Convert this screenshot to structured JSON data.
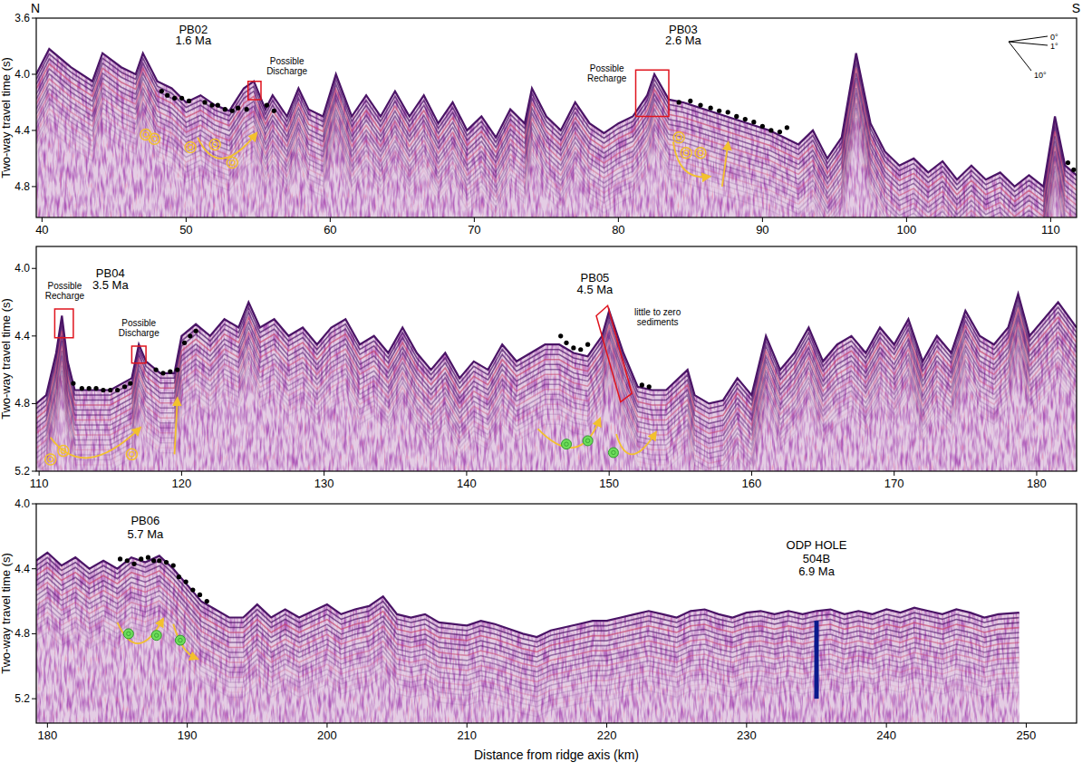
{
  "chart_data": [
    {
      "type": "line",
      "xlim": [
        39.6,
        111.8
      ],
      "xticks": [
        40,
        50,
        60,
        70,
        80,
        90,
        100,
        110
      ],
      "ylim": [
        3.6,
        5.02
      ],
      "yticks": [
        3.6,
        {
          "value": 4,
          "label": "4.0"
        },
        4.4,
        4.8
      ],
      "ylabel": "Two-way travel time (s)",
      "corner_labels": [
        "N",
        "S"
      ],
      "compass_labels": [
        "0°",
        "1°",
        "10°"
      ],
      "series": [
        {
          "type": "line",
          "color": "#4a1466",
          "x": [
            39.6,
            40.5,
            42,
            43.5,
            44.2,
            45.5,
            46.5,
            47,
            48,
            49,
            50,
            51,
            52,
            53,
            54,
            54.7,
            55.5,
            56,
            57,
            57.8,
            58.5,
            59.5,
            60.4,
            61.5,
            62.5,
            63.5,
            64.5,
            65.5,
            66.5,
            67.5,
            68.5,
            69.5,
            70.5,
            71.5,
            72.5,
            73.5,
            74,
            75,
            76,
            77,
            78,
            79,
            80,
            81,
            82,
            82.5,
            83.5,
            84.5,
            86,
            87.5,
            89,
            90.5,
            91.5,
            92.5,
            93.5,
            94.5,
            95.5,
            96.5,
            97.5,
            98.5,
            99.5,
            100.5,
            101.5,
            102.5,
            103.5,
            104.5,
            105.5,
            106.5,
            107.5,
            108.5,
            109.5,
            110.3,
            111,
            111.8
          ],
          "values": [
            4.0,
            3.82,
            3.95,
            4.05,
            3.85,
            3.95,
            4.0,
            3.85,
            4.05,
            4.1,
            4.2,
            4.15,
            4.22,
            4.26,
            4.1,
            4.05,
            4.25,
            4.15,
            4.3,
            4.1,
            4.25,
            4.3,
            4.0,
            4.3,
            4.15,
            4.3,
            4.12,
            4.3,
            4.15,
            4.35,
            4.2,
            4.4,
            4.3,
            4.45,
            4.25,
            4.35,
            4.1,
            4.3,
            4.4,
            4.2,
            4.35,
            4.42,
            4.35,
            4.3,
            4.15,
            4.0,
            4.18,
            4.2,
            4.25,
            4.3,
            4.35,
            4.4,
            4.45,
            4.5,
            4.4,
            4.6,
            4.45,
            3.85,
            4.35,
            4.55,
            4.65,
            4.6,
            4.7,
            4.62,
            4.75,
            4.65,
            4.75,
            4.7,
            4.8,
            4.72,
            4.8,
            4.3,
            4.65,
            4.72
          ]
        },
        {
          "type": "scatter",
          "color": "#000000",
          "marker": "circle",
          "x": [
            48.3,
            48.7,
            49.2,
            49.7,
            50.2,
            51.3,
            51.8,
            52.2,
            52.7,
            53.2,
            53.6,
            54.2,
            55.6,
            56.1,
            84.2,
            85,
            85.7,
            86.4,
            87,
            87.6,
            88.2,
            88.8,
            89.4,
            90,
            90.6,
            91.2,
            91.7,
            111.2,
            111.6
          ],
          "values": [
            4.12,
            4.15,
            4.17,
            4.17,
            4.19,
            4.2,
            4.22,
            4.22,
            4.25,
            4.26,
            4.24,
            4.25,
            4.22,
            4.26,
            4.2,
            4.19,
            4.22,
            4.24,
            4.26,
            4.27,
            4.3,
            4.32,
            4.34,
            4.37,
            4.4,
            4.41,
            4.38,
            4.63,
            4.68
          ]
        }
      ],
      "sites": [
        {
          "text": "PB02",
          "x": 50.5,
          "y": 3.71
        },
        {
          "text": "1.6 Ma",
          "x": 50.5,
          "y": 3.79
        },
        {
          "text": "PB03",
          "x": 84.5,
          "y": 3.71
        },
        {
          "text": "2.6 Ma",
          "x": 84.5,
          "y": 3.79
        }
      ],
      "notes": [
        {
          "text": "Possible Discharge",
          "x": 57,
          "y": 3.93
        },
        {
          "text": "Possible Recharge",
          "x": 79.2,
          "y": 3.98
        }
      ],
      "boxes": [
        [
          [
            54.3,
            4.05
          ],
          [
            55.2,
            4.05
          ],
          [
            55.2,
            4.18
          ],
          [
            54.3,
            4.18
          ]
        ],
        [
          [
            81.2,
            3.97
          ],
          [
            83.5,
            3.97
          ],
          [
            83.5,
            4.3
          ],
          [
            81.2,
            4.3
          ]
        ]
      ],
      "arrows": [
        [
          [
            50.8,
            4.45
          ],
          [
            52.5,
            4.6
          ],
          [
            54.8,
            4.43
          ]
        ],
        [
          [
            83.8,
            4.48
          ],
          [
            84.6,
            4.68
          ],
          [
            86.2,
            4.73
          ]
        ],
        [
          [
            87.2,
            4.8
          ],
          [
            87.6,
            4.5
          ]
        ]
      ],
      "flow_markers": [
        {
          "color": "#f2c12e",
          "points": [
            [
              47.2,
              4.43
            ],
            [
              47.8,
              4.46
            ],
            [
              50.3,
              4.52
            ],
            [
              52,
              4.5
            ],
            [
              53.2,
              4.63
            ],
            [
              84.2,
              4.45
            ],
            [
              84.7,
              4.56
            ],
            [
              85.7,
              4.56
            ]
          ]
        }
      ]
    },
    {
      "type": "line",
      "xlim": [
        109.8,
        182.8
      ],
      "xticks": [
        110,
        120,
        130,
        140,
        150,
        160,
        170,
        180
      ],
      "ylim": [
        3.87,
        5.2
      ],
      "yticks": [
        {
          "value": 4,
          "label": "4.0"
        },
        4.4,
        4.8,
        5.2
      ],
      "ylabel": "Two-way travel time (s)",
      "series": [
        {
          "type": "line",
          "color": "#4a1466",
          "x": [
            109.8,
            110.5,
            111.2,
            111.6,
            112,
            112.5,
            113.5,
            115,
            116.5,
            117,
            117.5,
            118.5,
            119.5,
            120,
            121,
            122,
            123,
            124,
            124.7,
            125.5,
            126.5,
            127.5,
            128.5,
            129.5,
            130.5,
            131.5,
            132.5,
            133.5,
            134.5,
            135.5,
            136.5,
            137.5,
            138.5,
            139.5,
            140.5,
            141.5,
            142.5,
            143.5,
            144.5,
            145.5,
            146.5,
            147.5,
            148.5,
            149.5,
            150,
            151,
            152,
            153,
            154,
            155.5,
            156,
            157,
            158,
            159,
            160,
            161,
            162,
            163,
            164,
            165,
            166,
            167,
            168,
            169,
            170,
            171,
            172,
            173,
            174,
            175,
            176,
            177,
            178,
            178.7,
            179.5,
            180.5,
            181.5,
            182.8
          ],
          "values": [
            4.8,
            4.75,
            4.5,
            4.28,
            4.55,
            4.72,
            4.72,
            4.72,
            4.65,
            4.45,
            4.55,
            4.62,
            4.62,
            4.4,
            4.33,
            4.4,
            4.3,
            4.35,
            4.2,
            4.35,
            4.3,
            4.4,
            4.35,
            4.45,
            4.35,
            4.3,
            4.45,
            4.4,
            4.5,
            4.35,
            4.5,
            4.6,
            4.5,
            4.65,
            4.55,
            4.6,
            4.45,
            4.55,
            4.5,
            4.45,
            4.45,
            4.5,
            4.52,
            4.4,
            4.25,
            4.5,
            4.7,
            4.72,
            4.72,
            4.6,
            4.75,
            4.8,
            4.78,
            4.65,
            4.75,
            4.4,
            4.6,
            4.5,
            4.35,
            4.55,
            4.45,
            4.4,
            4.5,
            4.35,
            4.45,
            4.3,
            4.55,
            4.4,
            4.5,
            4.25,
            4.4,
            4.45,
            4.35,
            4.15,
            4.4,
            4.3,
            4.2,
            4.35
          ]
        },
        {
          "type": "scatter",
          "color": "#000000",
          "marker": "circle",
          "x": [
            112.4,
            113,
            113.5,
            114,
            114.5,
            115,
            115.5,
            116,
            116.4,
            118.2,
            118.7,
            119.2,
            119.7,
            120.2,
            120.6,
            121,
            146.6,
            147,
            147.5,
            148,
            148.5,
            152.3,
            152.8
          ],
          "values": [
            4.68,
            4.71,
            4.71,
            4.71,
            4.72,
            4.72,
            4.72,
            4.7,
            4.68,
            4.6,
            4.62,
            4.61,
            4.6,
            4.44,
            4.4,
            4.37,
            4.4,
            4.44,
            4.47,
            4.48,
            4.45,
            4.69,
            4.7
          ]
        }
      ],
      "sites": [
        {
          "text": "PB04",
          "x": 115,
          "y": 4.05
        },
        {
          "text": "3.5 Ma",
          "x": 115,
          "y": 4.12
        },
        {
          "text": "PB05",
          "x": 149,
          "y": 4.08
        },
        {
          "text": "4.5 Ma",
          "x": 149,
          "y": 4.15
        }
      ],
      "notes": [
        {
          "text": "Possible Recharge",
          "x": 111.8,
          "y": 4.12
        },
        {
          "text": "Possible Discharge",
          "x": 117,
          "y": 4.34
        },
        {
          "text": "little to zero sediments",
          "x": 153.4,
          "y": 4.28
        }
      ],
      "boxes": [
        [
          [
            111.1,
            4.24
          ],
          [
            112.4,
            4.24
          ],
          [
            112.4,
            4.41
          ],
          [
            111.1,
            4.41
          ]
        ],
        [
          [
            116.5,
            4.46
          ],
          [
            117.5,
            4.46
          ],
          [
            117.5,
            4.56
          ],
          [
            116.5,
            4.56
          ]
        ],
        [
          [
            149.1,
            4.28
          ],
          [
            149.9,
            4.22
          ],
          [
            151.6,
            4.74
          ],
          [
            150.8,
            4.79
          ]
        ]
      ],
      "arrows": [
        [
          [
            110.8,
            5.0
          ],
          [
            113.5,
            5.12
          ],
          [
            117,
            4.95
          ]
        ],
        [
          [
            119.5,
            5.1
          ],
          [
            119.7,
            4.78
          ]
        ],
        [
          [
            145,
            4.95
          ],
          [
            147.5,
            5.06
          ],
          [
            149.3,
            4.9
          ]
        ],
        [
          [
            150.5,
            4.98
          ],
          [
            151.6,
            5.1
          ],
          [
            153.2,
            4.98
          ]
        ]
      ],
      "flow_markers": [
        {
          "color": "#f2c12e",
          "points": [
            [
              110.8,
              5.13
            ],
            [
              111.7,
              5.08
            ],
            [
              116.5,
              5.1
            ]
          ]
        },
        {
          "color": "#6edc5a",
          "points": [
            [
              147,
              5.04
            ],
            [
              148.5,
              5.02
            ],
            [
              150.3,
              5.09
            ]
          ]
        }
      ]
    },
    {
      "type": "line",
      "xlim": [
        179.2,
        253.6
      ],
      "xticks": [
        180,
        190,
        200,
        210,
        220,
        230,
        240,
        250
      ],
      "ylim": [
        4.0,
        5.35
      ],
      "yticks": [
        {
          "value": 4,
          "label": "4.0"
        },
        4.4,
        4.8,
        5.2
      ],
      "ylabel": "Two-way travel time (s)",
      "xlabel": "Distance from ridge axis (km)",
      "series": [
        {
          "type": "line",
          "color": "#4a1466",
          "x": [
            179.2,
            180,
            181,
            182,
            183,
            184,
            185,
            186,
            187,
            188,
            189,
            190,
            191,
            192,
            193,
            194,
            195,
            196,
            197,
            198,
            199,
            200,
            201,
            202,
            203,
            204,
            205,
            206,
            207,
            208,
            209,
            210,
            211,
            212,
            213,
            214,
            215,
            216,
            217,
            218,
            219,
            220,
            221,
            222,
            223,
            224,
            225,
            226,
            227,
            228,
            229,
            230,
            231,
            232,
            233,
            234,
            235,
            236,
            237,
            238,
            239,
            240,
            241,
            242,
            243,
            244,
            245,
            246,
            247,
            248,
            249.5
          ],
          "values": [
            4.35,
            4.3,
            4.38,
            4.33,
            4.4,
            4.35,
            4.4,
            4.33,
            4.36,
            4.32,
            4.4,
            4.5,
            4.6,
            4.65,
            4.7,
            4.7,
            4.62,
            4.7,
            4.65,
            4.7,
            4.66,
            4.62,
            4.68,
            4.65,
            4.63,
            4.57,
            4.68,
            4.7,
            4.68,
            4.73,
            4.74,
            4.75,
            4.72,
            4.74,
            4.77,
            4.8,
            4.82,
            4.78,
            4.76,
            4.74,
            4.72,
            4.72,
            4.7,
            4.68,
            4.66,
            4.68,
            4.7,
            4.66,
            4.65,
            4.68,
            4.7,
            4.67,
            4.66,
            4.68,
            4.66,
            4.68,
            4.66,
            4.65,
            4.68,
            4.66,
            4.68,
            4.65,
            4.67,
            4.64,
            4.66,
            4.68,
            4.65,
            4.67,
            4.7,
            4.68,
            4.67
          ]
        },
        {
          "type": "scatter",
          "color": "#000000",
          "marker": "circle",
          "x": [
            185.2,
            185.7,
            186.2,
            186.7,
            187.2,
            187.6,
            188,
            188.5,
            189,
            189.4,
            189.9,
            190.4,
            190.9,
            191.4
          ],
          "values": [
            4.34,
            4.35,
            4.37,
            4.34,
            4.33,
            4.35,
            4.35,
            4.36,
            4.38,
            4.45,
            4.48,
            4.53,
            4.56,
            4.6
          ]
        }
      ],
      "sites": [
        {
          "text": "PB06",
          "x": 187,
          "y": 4.13
        },
        {
          "text": "5.7 Ma",
          "x": 187,
          "y": 4.21
        },
        {
          "text": "ODP HOLE",
          "x": 235,
          "y": 4.28
        },
        {
          "text": "504B",
          "x": 235,
          "y": 4.36
        },
        {
          "text": "6.9 Ma",
          "x": 235,
          "y": 4.44
        }
      ],
      "arrows": [
        [
          [
            185,
            4.73
          ],
          [
            186.5,
            4.86
          ],
          [
            188.2,
            4.72
          ]
        ],
        [
          [
            189,
            4.74
          ],
          [
            189.7,
            4.88
          ],
          [
            190.6,
            4.95
          ]
        ]
      ],
      "flow_markers": [
        {
          "color": "#6edc5a",
          "points": [
            [
              185.8,
              4.8
            ],
            [
              187.8,
              4.81
            ],
            [
              189.5,
              4.84
            ]
          ]
        }
      ],
      "borehole": {
        "x": 235,
        "y": [
          4.72,
          5.2
        ]
      }
    }
  ]
}
